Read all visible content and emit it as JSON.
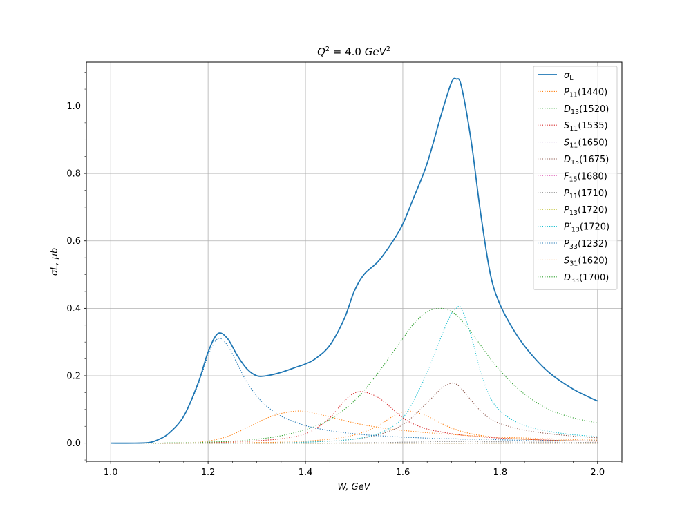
{
  "chart_data": {
    "type": "line",
    "title": "Q² = 4.0 GeV²",
    "title_parts": {
      "q": "Q",
      "sup1": "2",
      "mid": " = 4.0 ",
      "gev": "GeV",
      "sup2": "2"
    },
    "xlabel": "W, GeV",
    "ylabel": "σL, μb",
    "xlim": [
      0.95,
      2.05
    ],
    "ylim": [
      -0.054,
      1.13
    ],
    "xticks": [
      "1.0",
      "1.2",
      "1.4",
      "1.6",
      "1.8",
      "2.0"
    ],
    "yticks": [
      "0.0",
      "0.2",
      "0.4",
      "0.6",
      "0.8",
      "1.0"
    ],
    "grid": true,
    "legend_position": "upper right",
    "x": [
      1.0,
      1.05,
      1.08,
      1.1,
      1.12,
      1.15,
      1.18,
      1.2,
      1.22,
      1.24,
      1.26,
      1.28,
      1.3,
      1.32,
      1.35,
      1.38,
      1.4,
      1.42,
      1.45,
      1.48,
      1.5,
      1.52,
      1.55,
      1.58,
      1.6,
      1.62,
      1.65,
      1.68,
      1.7,
      1.71,
      1.72,
      1.74,
      1.76,
      1.78,
      1.8,
      1.83,
      1.86,
      1.9,
      1.95,
      2.0
    ],
    "series": [
      {
        "name": "σ_L",
        "base": "σ",
        "sub": "L",
        "prime": "",
        "paren": "",
        "color": "#1f77b4",
        "style": "solid",
        "values": [
          0.0,
          0.0,
          0.002,
          0.012,
          0.03,
          0.08,
          0.18,
          0.27,
          0.325,
          0.31,
          0.26,
          0.22,
          0.2,
          0.2,
          0.21,
          0.225,
          0.235,
          0.25,
          0.29,
          0.37,
          0.45,
          0.5,
          0.54,
          0.6,
          0.65,
          0.72,
          0.83,
          0.98,
          1.07,
          1.08,
          1.06,
          0.9,
          0.68,
          0.5,
          0.41,
          0.33,
          0.27,
          0.21,
          0.16,
          0.125
        ]
      },
      {
        "name": "P11(1440)",
        "base": "P",
        "sub": "11",
        "prime": "",
        "paren": "(1440)",
        "color": "#ff7f0e",
        "style": "dotted",
        "values": [
          0.0,
          0.0,
          0.0,
          0.0,
          0.0,
          0.001,
          0.003,
          0.006,
          0.012,
          0.02,
          0.032,
          0.046,
          0.06,
          0.074,
          0.088,
          0.095,
          0.094,
          0.088,
          0.078,
          0.067,
          0.06,
          0.054,
          0.047,
          0.041,
          0.038,
          0.035,
          0.031,
          0.028,
          0.026,
          0.025,
          0.024,
          0.022,
          0.021,
          0.019,
          0.018,
          0.016,
          0.015,
          0.013,
          0.011,
          0.009
        ]
      },
      {
        "name": "D13(1520)",
        "base": "D",
        "sub": "13",
        "prime": "",
        "paren": "(1520)",
        "color": "#2ca02c",
        "style": "dotted",
        "values": [
          0.0,
          0.0,
          0.0,
          0.0,
          0.0,
          0.0,
          0.0,
          0.0,
          0.0,
          0.0,
          0.0,
          0.0,
          0.0,
          0.0,
          0.0,
          0.0,
          0.0,
          0.0,
          0.0,
          0.0,
          0.0,
          0.0,
          0.0,
          0.0,
          0.0,
          0.0,
          0.0,
          0.0,
          0.0,
          0.0,
          0.0,
          0.0,
          0.0,
          0.0,
          0.0,
          0.0,
          0.0,
          0.0,
          0.0,
          0.0
        ]
      },
      {
        "name": "S11(1535)",
        "base": "S",
        "sub": "11",
        "prime": "",
        "paren": "(1535)",
        "color": "#d62728",
        "style": "dotted",
        "values": [
          0.0,
          0.0,
          0.0,
          0.0,
          0.0,
          0.0,
          0.001,
          0.001,
          0.002,
          0.003,
          0.004,
          0.005,
          0.007,
          0.009,
          0.013,
          0.02,
          0.028,
          0.042,
          0.075,
          0.125,
          0.148,
          0.152,
          0.135,
          0.1,
          0.075,
          0.058,
          0.042,
          0.033,
          0.028,
          0.026,
          0.024,
          0.021,
          0.019,
          0.017,
          0.015,
          0.013,
          0.011,
          0.009,
          0.007,
          0.006
        ]
      },
      {
        "name": "S11(1650)",
        "base": "S",
        "sub": "11",
        "prime": "",
        "paren": "(1650)",
        "color": "#9467bd",
        "style": "dotted",
        "values": [
          0.0,
          0.0,
          0.0,
          0.0,
          0.0,
          0.0,
          0.0,
          0.0,
          0.0,
          0.0,
          0.0,
          0.0,
          0.0,
          0.0,
          0.0,
          0.0,
          0.0,
          0.0,
          0.0,
          0.0,
          0.0,
          0.0,
          0.0,
          0.0,
          0.0,
          0.0,
          0.0,
          0.0,
          0.0,
          0.0,
          0.0,
          0.0,
          0.0,
          0.0,
          0.0,
          0.0,
          0.0,
          0.0,
          0.0,
          0.0
        ]
      },
      {
        "name": "D15(1675)",
        "base": "D",
        "sub": "15",
        "prime": "",
        "paren": "(1675)",
        "color": "#8c564b",
        "style": "dotted",
        "values": [
          0.0,
          0.0,
          0.0,
          0.0,
          0.0,
          0.0,
          0.0,
          0.0,
          0.0,
          0.0,
          0.0,
          0.0,
          0.001,
          0.001,
          0.002,
          0.002,
          0.003,
          0.004,
          0.006,
          0.009,
          0.012,
          0.016,
          0.025,
          0.04,
          0.055,
          0.078,
          0.12,
          0.163,
          0.178,
          0.175,
          0.162,
          0.128,
          0.095,
          0.072,
          0.058,
          0.045,
          0.036,
          0.028,
          0.021,
          0.016
        ]
      },
      {
        "name": "F15(1680)",
        "base": "F",
        "sub": "15",
        "prime": "",
        "paren": "(1680)",
        "color": "#e377c2",
        "style": "dotted",
        "values": [
          0.0,
          0.0,
          0.0,
          0.0,
          0.0,
          0.0,
          0.0,
          0.0,
          0.0,
          0.0,
          0.0,
          0.0,
          0.0,
          0.0,
          0.0,
          0.0,
          0.0,
          0.0,
          0.0,
          0.0,
          0.0,
          0.0,
          0.0,
          0.0,
          0.0,
          0.0,
          0.0,
          0.0,
          0.0,
          0.0,
          0.0,
          0.0,
          0.0,
          0.0,
          0.0,
          0.0,
          0.0,
          0.0,
          0.0,
          0.0
        ]
      },
      {
        "name": "P11(1710)",
        "base": "P",
        "sub": "11",
        "prime": "",
        "paren": "(1710)",
        "color": "#7f7f7f",
        "style": "dotted",
        "values": [
          0.0,
          0.0,
          0.0,
          0.0,
          0.0,
          0.0,
          0.0,
          0.0,
          0.0,
          0.0,
          0.0,
          0.0,
          0.0,
          0.0,
          0.0,
          0.0,
          0.0,
          0.0,
          0.0,
          0.001,
          0.001,
          0.001,
          0.002,
          0.002,
          0.003,
          0.003,
          0.004,
          0.005,
          0.005,
          0.005,
          0.005,
          0.005,
          0.004,
          0.004,
          0.004,
          0.003,
          0.003,
          0.003,
          0.002,
          0.002
        ]
      },
      {
        "name": "P13(1720)",
        "base": "P",
        "sub": "13",
        "prime": "",
        "paren": "(1720)",
        "color": "#bcbd22",
        "style": "dotted",
        "values": [
          0.0,
          0.0,
          0.0,
          0.0,
          0.0,
          0.0,
          0.0,
          0.0,
          0.0,
          0.0,
          0.0,
          0.0,
          0.0,
          0.0,
          0.0,
          0.0,
          0.0,
          0.0,
          0.0,
          0.0,
          0.0,
          0.0,
          0.0,
          0.0,
          0.0,
          0.0,
          0.0,
          0.0,
          0.0,
          0.0,
          0.0,
          0.0,
          0.0,
          0.0,
          0.0,
          0.0,
          0.0,
          0.0,
          0.0,
          0.0
        ]
      },
      {
        "name": "P′13(1720)",
        "base": "P",
        "sub": "13",
        "prime": "′",
        "paren": "(1720)",
        "color": "#17becf",
        "style": "dotted",
        "values": [
          0.0,
          0.0,
          0.0,
          0.0,
          0.0,
          0.0,
          0.0,
          0.0,
          0.0,
          0.0,
          0.0,
          0.001,
          0.001,
          0.001,
          0.002,
          0.002,
          0.003,
          0.004,
          0.006,
          0.009,
          0.012,
          0.017,
          0.028,
          0.05,
          0.075,
          0.12,
          0.21,
          0.32,
          0.385,
          0.4,
          0.4,
          0.32,
          0.21,
          0.135,
          0.095,
          0.065,
          0.048,
          0.035,
          0.025,
          0.02
        ]
      },
      {
        "name": "P33(1232)",
        "base": "P",
        "sub": "33",
        "prime": "",
        "paren": "(1232)",
        "color": "#1f77b4",
        "style": "dotted",
        "values": [
          0.0,
          0.0,
          0.002,
          0.012,
          0.03,
          0.08,
          0.175,
          0.26,
          0.31,
          0.29,
          0.235,
          0.18,
          0.14,
          0.11,
          0.08,
          0.062,
          0.052,
          0.045,
          0.037,
          0.031,
          0.028,
          0.025,
          0.022,
          0.02,
          0.018,
          0.017,
          0.015,
          0.014,
          0.013,
          0.013,
          0.012,
          0.012,
          0.011,
          0.011,
          0.01,
          0.009,
          0.009,
          0.008,
          0.007,
          0.007
        ]
      },
      {
        "name": "S31(1620)",
        "base": "S",
        "sub": "31",
        "prime": "",
        "paren": "(1620)",
        "color": "#ff7f0e",
        "style": "dotted",
        "values": [
          0.0,
          0.0,
          0.0,
          0.0,
          0.0,
          0.0,
          0.0,
          0.0,
          0.0,
          0.001,
          0.001,
          0.001,
          0.002,
          0.002,
          0.003,
          0.005,
          0.006,
          0.008,
          0.012,
          0.018,
          0.024,
          0.033,
          0.052,
          0.08,
          0.092,
          0.094,
          0.08,
          0.058,
          0.045,
          0.04,
          0.035,
          0.028,
          0.023,
          0.019,
          0.016,
          0.013,
          0.011,
          0.009,
          0.007,
          0.006
        ]
      },
      {
        "name": "D33(1700)",
        "base": "D",
        "sub": "33",
        "prime": "",
        "paren": "(1700)",
        "color": "#2ca02c",
        "style": "dotted",
        "values": [
          0.0,
          0.0,
          0.0,
          0.0,
          0.001,
          0.001,
          0.002,
          0.003,
          0.004,
          0.005,
          0.007,
          0.009,
          0.012,
          0.015,
          0.022,
          0.032,
          0.04,
          0.05,
          0.07,
          0.1,
          0.125,
          0.155,
          0.21,
          0.27,
          0.31,
          0.35,
          0.39,
          0.4,
          0.39,
          0.38,
          0.365,
          0.33,
          0.29,
          0.25,
          0.215,
          0.17,
          0.135,
          0.1,
          0.075,
          0.06
        ]
      }
    ]
  }
}
